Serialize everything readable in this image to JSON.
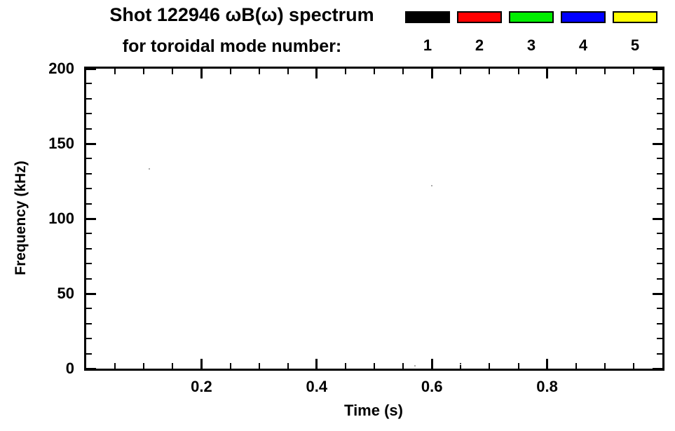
{
  "chart_data": {
    "type": "scatter",
    "title": "Shot 122946 ωB(ω) spectrum",
    "subtitle": "for toroidal mode number:",
    "xlabel": "Time (s)",
    "ylabel": "Frequency (kHz)",
    "xlim": [
      0.0,
      1.0
    ],
    "ylim": [
      0,
      200
    ],
    "xticks": [
      0.2,
      0.4,
      0.6,
      0.8
    ],
    "xtick_labels": [
      "0.2",
      "0.4",
      "0.6",
      "0.8"
    ],
    "x_minor_step": 0.05,
    "yticks": [
      0,
      50,
      100,
      150,
      200
    ],
    "ytick_labels": [
      "0",
      "50",
      "100",
      "150",
      "200"
    ],
    "y_minor_step": 10,
    "grid": false,
    "frame_color": "#000000",
    "background_color": "#ffffff",
    "legend": {
      "position": "top-right",
      "entries": [
        {
          "label": "1",
          "color": "#000000"
        },
        {
          "label": "2",
          "color": "#ff0000"
        },
        {
          "label": "3",
          "color": "#00ee00"
        },
        {
          "label": "4",
          "color": "#0000ff"
        },
        {
          "label": "5",
          "color": "#ffff00"
        }
      ]
    },
    "series": [
      {
        "name": "spectrum-points",
        "color": "#aaaaaa",
        "points": [
          {
            "x": 0.11,
            "y": 133
          },
          {
            "x": 0.6,
            "y": 122
          },
          {
            "x": 0.57,
            "y": 2
          },
          {
            "x": 0.65,
            "y": 3
          }
        ]
      }
    ]
  }
}
